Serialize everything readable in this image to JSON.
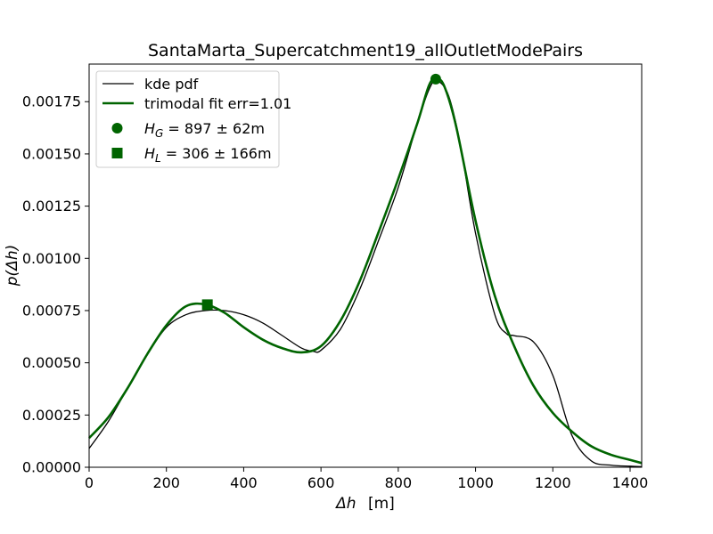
{
  "chart_data": {
    "type": "line",
    "title": "SantaMarta_Supercatchment19_allOutletModePairs",
    "xlabel_main": "Δh",
    "xlabel_unit": "[m]",
    "ylabel": "p(Δh)",
    "xlim": [
      0,
      1430
    ],
    "ylim": [
      0,
      0.00193
    ],
    "x_ticks": [
      0,
      200,
      400,
      600,
      800,
      1000,
      1200,
      1400
    ],
    "x_tick_labels": [
      "0",
      "200",
      "400",
      "600",
      "800",
      "1000",
      "1200",
      "1400"
    ],
    "y_ticks": [
      0,
      0.00025,
      0.0005,
      0.00075,
      0.001,
      0.00125,
      0.0015,
      0.00175
    ],
    "y_tick_labels": [
      "0.00000",
      "0.00025",
      "0.00050",
      "0.00075",
      "0.00100",
      "0.00125",
      "0.00150",
      "0.00175"
    ],
    "grid": false,
    "legend_placement": "upper-left",
    "series": [
      {
        "name": "kde pdf",
        "color": "#000000",
        "x": [
          0,
          50,
          100,
          150,
          200,
          250,
          300,
          350,
          400,
          450,
          500,
          550,
          580,
          600,
          650,
          700,
          750,
          800,
          850,
          880,
          900,
          930,
          960,
          1000,
          1050,
          1080,
          1100,
          1150,
          1200,
          1250,
          1300,
          1350,
          1400,
          1430
        ],
        "y": [
          9e-05,
          0.00022,
          0.00038,
          0.00054,
          0.00067,
          0.00073,
          0.00075,
          0.00075,
          0.00073,
          0.00069,
          0.00063,
          0.00057,
          0.000555,
          0.00056,
          0.00066,
          0.00085,
          0.00109,
          0.00134,
          0.00165,
          0.00181,
          0.00185,
          0.00178,
          0.00155,
          0.00112,
          0.00073,
          0.00064,
          0.00063,
          0.0006,
          0.00044,
          0.00015,
          3e-05,
          1e-05,
          5e-06,
          3e-06
        ]
      },
      {
        "name": "trimodal fit err=1.01",
        "color": "#006400",
        "x": [
          0,
          50,
          100,
          150,
          200,
          250,
          300,
          350,
          400,
          450,
          500,
          550,
          600,
          650,
          700,
          750,
          800,
          850,
          880,
          900,
          920,
          950,
          1000,
          1050,
          1100,
          1150,
          1200,
          1250,
          1300,
          1350,
          1400,
          1430
        ],
        "y": [
          0.00014,
          0.00024,
          0.00038,
          0.00054,
          0.00068,
          0.00077,
          0.00078,
          0.00074,
          0.00067,
          0.00061,
          0.00057,
          0.00055,
          0.00058,
          0.0007,
          0.00089,
          0.00113,
          0.00138,
          0.00165,
          0.00183,
          0.00186,
          0.00182,
          0.00163,
          0.00118,
          0.00082,
          0.00058,
          0.00039,
          0.00026,
          0.00017,
          0.0001,
          6e-05,
          3.5e-05,
          2e-05
        ]
      }
    ],
    "markers": [
      {
        "name_math": "H",
        "name_sub": "G",
        "name_rest": " = 897 ± 62m",
        "shape": "circle",
        "color": "#006400",
        "x": 897,
        "y": 0.001858
      },
      {
        "name_math": "H",
        "name_sub": "L",
        "name_rest": " = 306 ± 166m",
        "shape": "square",
        "color": "#006400",
        "x": 306,
        "y": 0.000778
      }
    ]
  }
}
